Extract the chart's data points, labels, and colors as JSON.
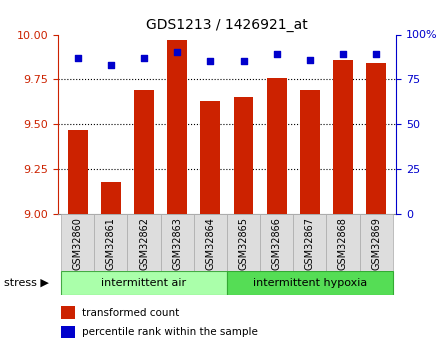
{
  "title": "GDS1213 / 1426921_at",
  "samples": [
    "GSM32860",
    "GSM32861",
    "GSM32862",
    "GSM32863",
    "GSM32864",
    "GSM32865",
    "GSM32866",
    "GSM32867",
    "GSM32868",
    "GSM32869"
  ],
  "bar_values": [
    9.47,
    9.18,
    9.69,
    9.97,
    9.63,
    9.65,
    9.76,
    9.69,
    9.86,
    9.84
  ],
  "percentile_values": [
    87,
    83,
    87,
    90,
    85,
    85,
    89,
    86,
    89,
    89
  ],
  "bar_color": "#cc2200",
  "dot_color": "#0000cc",
  "ylim_left": [
    9,
    10
  ],
  "ylim_right": [
    0,
    100
  ],
  "yticks_left": [
    9,
    9.25,
    9.5,
    9.75,
    10
  ],
  "yticks_right": [
    0,
    25,
    50,
    75,
    100
  ],
  "grid_yticks": [
    9.25,
    9.5,
    9.75
  ],
  "bar_width": 0.6,
  "group1_label": "intermittent air",
  "group2_label": "intermittent hypoxia",
  "group1_color": "#aaffaa",
  "group2_color": "#55dd55",
  "stress_label": "stress ▶",
  "legend_bar_label": "transformed count",
  "legend_dot_label": "percentile rank within the sample",
  "label_bg_color": "#dddddd",
  "label_edge_color": "#aaaaaa"
}
